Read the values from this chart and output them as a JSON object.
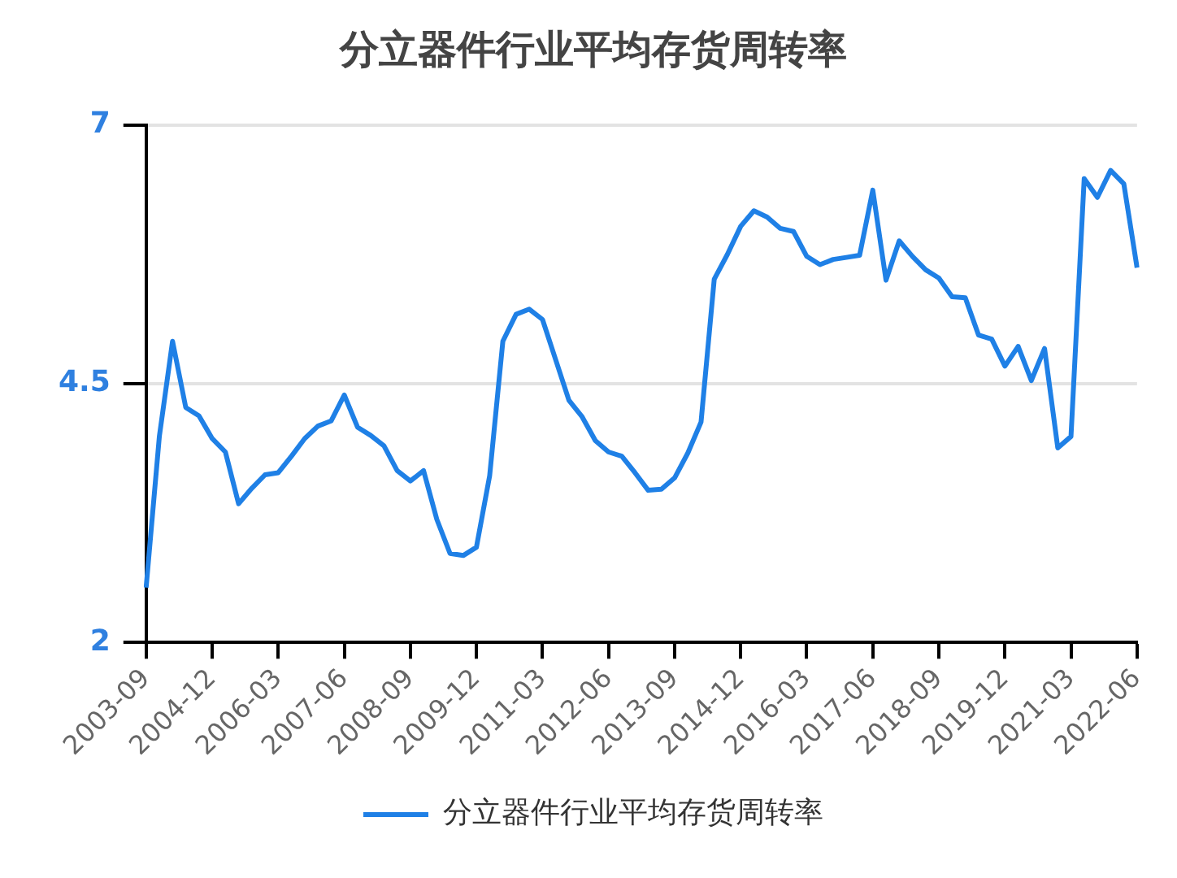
{
  "chart_data": {
    "type": "line",
    "title": "分立器件行业平均存货周转率",
    "categories": [
      "2003-09",
      null,
      null,
      null,
      null,
      "2004-12",
      null,
      null,
      null,
      null,
      "2006-03",
      null,
      null,
      null,
      null,
      "2007-06",
      null,
      null,
      null,
      null,
      "2008-09",
      null,
      null,
      null,
      null,
      "2009-12",
      null,
      null,
      null,
      null,
      "2011-03",
      null,
      null,
      null,
      null,
      "2012-06",
      null,
      null,
      null,
      null,
      "2013-09",
      null,
      null,
      null,
      null,
      "2014-12",
      null,
      null,
      null,
      null,
      "2016-03",
      null,
      null,
      null,
      null,
      "2017-06",
      null,
      null,
      null,
      null,
      "2018-09",
      null,
      null,
      null,
      null,
      "2019-12",
      null,
      null,
      null,
      null,
      "2021-03",
      null,
      null,
      null,
      null,
      "2022-06"
    ],
    "series": [
      {
        "name": "分立器件行业平均存货周转率",
        "color": "#1f80e6",
        "values": [
          2.53,
          3.99,
          4.91,
          4.27,
          4.19,
          3.97,
          3.84,
          3.34,
          3.49,
          3.62,
          3.64,
          3.8,
          3.97,
          4.09,
          4.14,
          4.39,
          4.08,
          4.0,
          3.9,
          3.66,
          3.56,
          3.66,
          3.19,
          2.86,
          2.84,
          2.92,
          3.61,
          4.91,
          5.17,
          5.22,
          5.12,
          4.73,
          4.34,
          4.18,
          3.95,
          3.84,
          3.8,
          3.64,
          3.47,
          3.48,
          3.59,
          3.83,
          4.13,
          5.51,
          5.75,
          6.02,
          6.17,
          6.11,
          6.0,
          5.97,
          5.73,
          5.65,
          5.7,
          5.72,
          5.74,
          6.37,
          5.5,
          5.88,
          5.73,
          5.6,
          5.52,
          5.34,
          5.33,
          4.97,
          4.93,
          4.67,
          4.86,
          4.53,
          4.84,
          3.88,
          3.99,
          6.48,
          6.3,
          6.56,
          6.43,
          5.62
        ]
      }
    ],
    "ylim": [
      2,
      7
    ],
    "yticks": [
      2,
      4.5,
      7
    ],
    "grid": "y",
    "legend": "bottom",
    "marker": "none",
    "line_style": "solid"
  }
}
